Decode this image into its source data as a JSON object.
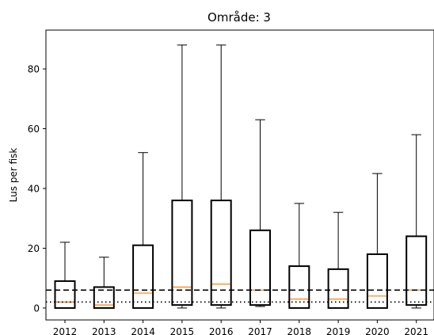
{
  "chart_data": {
    "type": "box",
    "title": "Område: 3",
    "xlabel": "",
    "ylabel": "Lus per fisk",
    "categories": [
      "2012",
      "2013",
      "2014",
      "2015",
      "2016",
      "2017",
      "2018",
      "2019",
      "2020",
      "2021"
    ],
    "boxes": [
      {
        "whisker_low": 0,
        "q1": 0,
        "median": 2,
        "q3": 9,
        "whisker_high": 22
      },
      {
        "whisker_low": 0,
        "q1": 0,
        "median": 1,
        "q3": 7,
        "whisker_high": 17
      },
      {
        "whisker_low": 0,
        "q1": 0,
        "median": 5,
        "q3": 21,
        "whisker_high": 52
      },
      {
        "whisker_low": 0,
        "q1": 1,
        "median": 7,
        "q3": 36,
        "whisker_high": 88
      },
      {
        "whisker_low": 0,
        "q1": 1,
        "median": 8,
        "q3": 36,
        "whisker_high": 88
      },
      {
        "whisker_low": 0.5,
        "q1": 1,
        "median": 6,
        "q3": 26,
        "whisker_high": 63
      },
      {
        "whisker_low": 0,
        "q1": 0,
        "median": 3,
        "q3": 14,
        "whisker_high": 35
      },
      {
        "whisker_low": 0,
        "q1": 0,
        "median": 3,
        "q3": 13,
        "whisker_high": 32
      },
      {
        "whisker_low": 0,
        "q1": 0,
        "median": 4,
        "q3": 18,
        "whisker_high": 45
      },
      {
        "whisker_low": 0,
        "q1": 1,
        "median": 6,
        "q3": 24,
        "whisker_high": 58
      }
    ],
    "reference_lines": [
      {
        "y": 6,
        "style": "dashed"
      },
      {
        "y": 2,
        "style": "dotted"
      }
    ],
    "yticks": [
      0,
      20,
      40,
      60,
      80
    ],
    "ylim": [
      -4,
      93
    ],
    "grid": false,
    "colors": {
      "box": "#000000",
      "median": "#ff7f0e"
    }
  }
}
